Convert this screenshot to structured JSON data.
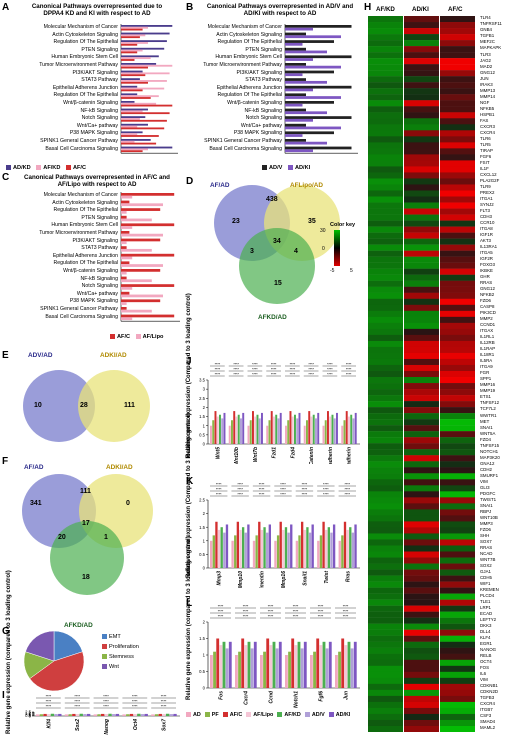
{
  "panels": {
    "A": {
      "letter": "A",
      "title": "Canonical Pathways overrepresented due to DPPA4 KD and KI with respect to AD",
      "legend": [
        {
          "label": "AD/KD",
          "color": "#4a3c8c"
        },
        {
          "label": "AF/KD",
          "color": "#f2a8c0"
        },
        {
          "label": "AF/C",
          "color": "#d32f2f"
        }
      ]
    },
    "B": {
      "letter": "B",
      "title": "Canonical Pathways overrepresented in AD/V and AD/KI with respect to AD",
      "legend": [
        {
          "label": "AD/V",
          "color": "#222222"
        },
        {
          "label": "AD/KI",
          "color": "#7e57c2"
        }
      ]
    },
    "C": {
      "letter": "C",
      "title": "Canonical Pathways overrepresented in AF/C and AF/Lipo with respect to AD",
      "legend": [
        {
          "label": "AF/C",
          "color": "#d32f2f"
        },
        {
          "label": "AF/Lipo",
          "color": "#f2a8c0"
        }
      ]
    },
    "D": {
      "letter": "D",
      "labels": [
        "AF/AD",
        "AFLipo/AD",
        "AFKD/AD"
      ],
      "numbers": [
        "23",
        "438",
        "35",
        "3",
        "34",
        "4",
        "15"
      ],
      "colorkey": "Color key",
      "ticks": [
        "30",
        "0",
        "-5",
        "5"
      ]
    },
    "E": {
      "letter": "E",
      "labels": [
        "ADV/AD",
        "ADKI/AD"
      ],
      "numbers": [
        "10",
        "28",
        "111"
      ]
    },
    "F": {
      "letter": "F",
      "labels": [
        "AF/AD",
        "ADKI/AD",
        "AFKD/AD"
      ],
      "numbers": [
        "341",
        "111",
        "0",
        "17",
        "20",
        "1",
        "18"
      ]
    },
    "G": {
      "letter": "G",
      "legend": [
        {
          "label": "EMT",
          "color": "#4a80c4"
        },
        {
          "label": "Proliferation",
          "color": "#cf3f3f"
        },
        {
          "label": "Stemness",
          "color": "#8bb547"
        },
        {
          "label": "Wnt",
          "color": "#7a58b0"
        }
      ]
    },
    "H": {
      "letter": "H",
      "columns": [
        "AF/KD",
        "AD/KI",
        "AF/C"
      ]
    },
    "I": {
      "letter": "I",
      "ylabel": "Relative gene expression (compared to 3 loading control)",
      "genes": [
        "Klf4",
        "Sox2",
        "Nanog",
        "Oct4",
        "Sox7"
      ],
      "yticks": [
        "0",
        "0.5",
        "1",
        "1.5",
        "2",
        "2.5"
      ]
    },
    "J": {
      "letter": "J",
      "ylabel": "Relative gene expression (Compared to 3 loading control)",
      "genes": [
        "Wnt5",
        "Wnt10b",
        "Wnt7b",
        "Fzd1",
        "Fzd4",
        "β-Catenin",
        "N-Cadherin",
        "E-Cadherin"
      ],
      "yticks": [
        "0",
        "0.5",
        "1",
        "1.5",
        "2",
        "2.5",
        "3",
        "3.5"
      ]
    },
    "K": {
      "letter": "K",
      "ylabel": "Relative gene expression (Compared to 3 loading control)",
      "genes": [
        "Mmp3",
        "Mmp10",
        "Vimentin",
        "Mmp16",
        "Snail1",
        "Twist",
        "Rras"
      ],
      "yticks": [
        "0",
        "0.5",
        "1",
        "1.5",
        "2",
        "2.5"
      ]
    },
    "L": {
      "letter": "L",
      "ylabel": "Relative gene expression (compared to 3 loading control)",
      "genes": [
        "Fos",
        "Cxcr4",
        "Ccnd",
        "Notch1",
        "Fgf6",
        "Jun"
      ],
      "yticks": [
        "0",
        "0.5",
        "1",
        "1.5",
        "2"
      ]
    }
  },
  "pathways": [
    "Molecular Mechanism of Cancer",
    "Actin Cytoskeleton Signaling",
    "Regulation Of The Epithelial",
    "PTEN Signaling",
    "Human Embryonic Stem Cell",
    "Tumor Microenvironment Pathway",
    "PI3K/AKT Signaling",
    "STAT3 Pathway",
    "Epithelial Adherens Junction",
    "Regulation Of The Epithelial",
    "Wnt/β-catenin Signaling",
    "NF-kB Signaling",
    "Notch Signaling",
    "Wnt/Ca+ pathway",
    "P38 MAPK Signaling",
    "SPINK1 General Cancer Pathway",
    "Basal Cell Carcinoma Signaling"
  ],
  "bar_axis": {
    "ticks": [
      "0",
      "5",
      "10"
    ],
    "ticksB": [
      "0",
      "5",
      "10",
      "15",
      "20"
    ],
    "ticksC": [
      "0",
      "2",
      "4",
      "6",
      "8",
      "10",
      "12"
    ]
  },
  "pie_data": {
    "type": "pie",
    "slices": [
      {
        "label": "EMT",
        "value": 20
      },
      {
        "label": "Proliferation",
        "value": 45
      },
      {
        "label": "Stemness",
        "value": 15
      },
      {
        "label": "Wnt",
        "value": 20
      }
    ]
  },
  "bottom_legend": [
    {
      "label": "AD",
      "color": "#f2a8c0"
    },
    {
      "label": "PF",
      "color": "#8bb547"
    },
    {
      "label": "AF/C",
      "color": "#d32f2f"
    },
    {
      "label": "AF/Lipo",
      "color": "#f5c6d6"
    },
    {
      "label": "AF/KD",
      "color": "#4caf50"
    },
    {
      "label": "AD/V",
      "color": "#b0a0d8"
    },
    {
      "label": "AD/KI",
      "color": "#7e57c2"
    }
  ],
  "sig_mark": "****",
  "heatmap_genes": [
    "TLR4",
    "TNFRSF11",
    "GNB4",
    "TGFB1",
    "MEF2C",
    "MAPKAPK",
    "TLR3",
    "JAG2",
    "MAD2",
    "GNG12",
    "JUN",
    "IRAK3",
    "MMP13",
    "MMP14",
    "NGF",
    "NFKB5",
    "HSPB1",
    "FAS",
    "CXCR3",
    "CXCR4",
    "TLR6",
    "TLR5",
    "TIRAP",
    "FGF6",
    "FSIT",
    "IL1F",
    "CXCL12",
    "PLA2G2F",
    "TLR9",
    "PREX2",
    "ITGA1",
    "SYNJ2",
    "FLT3",
    "CDH3",
    "CCR10",
    "ITGA8",
    "IGF1R",
    "AKT3",
    "IL13RA1",
    "ITGA5",
    "IGF2R",
    "FOXO3",
    "IKBKE",
    "GHR",
    "RRAS",
    "GNG12",
    "NFKB2",
    "FZD6",
    "CASP8",
    "PIK3CD",
    "MMP2",
    "CCND1",
    "ITGAX",
    "IL1RL1",
    "IL12RB",
    "IL1RAP",
    "IL18R1",
    "IL5RA",
    "ITGA9",
    "FGR",
    "SPP1",
    "MMP16",
    "MMP19",
    "ETS1",
    "TNFSF12",
    "TCF7L2",
    "WWTR1",
    "MET",
    "SNAI1",
    "WNT5A",
    "FZD4",
    "TNFSF15",
    "NOTCH1",
    "MAP3K20",
    "GNA12",
    "CDH2",
    "SMURF1",
    "VIM",
    "GLI3",
    "PDGFC",
    "TWIST1",
    "SNAI1",
    "RBPJ",
    "WNT10B",
    "MMP3",
    "FZD6",
    "SHH",
    "SOX7",
    "RRAS",
    "NCAD",
    "WNT7B",
    "SOX2",
    "GJA1",
    "CDH5",
    "WIF1",
    "KREMEN",
    "PLCD4",
    "TLE1",
    "LRP1",
    "ECAD",
    "LEFTY2",
    "DKK3",
    "DLL4",
    "KLF4",
    "EGR1",
    "NANOG",
    "RELB",
    "OCT4",
    "FOS",
    "IL6",
    "VIM",
    "CDKNB1",
    "CDKN2D",
    "TGFB3",
    "CXCR4",
    "ITGB7",
    "CSF3",
    "SMAD4",
    "MAML2"
  ]
}
